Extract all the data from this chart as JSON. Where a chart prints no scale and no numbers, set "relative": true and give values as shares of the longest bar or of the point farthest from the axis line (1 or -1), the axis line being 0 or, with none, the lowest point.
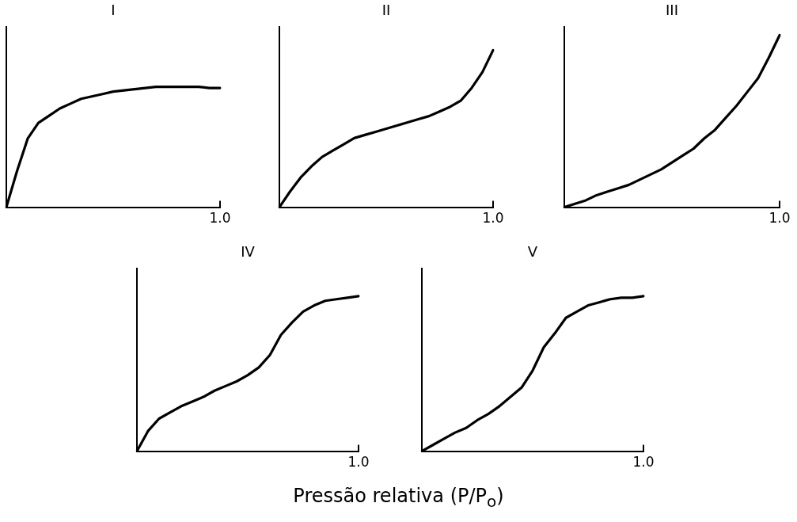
{
  "chart_data": [
    {
      "type": "line",
      "title": "I",
      "relative": true,
      "annotations": [
        "1.0"
      ],
      "grid": false,
      "legend": false,
      "marker": "none",
      "line_style": "solid",
      "categories": [
        null,
        null,
        null,
        null,
        null,
        null,
        null,
        null,
        null,
        null,
        null,
        null,
        null,
        null,
        null,
        null,
        null,
        null,
        null,
        null,
        null
      ],
      "series": [
        {
          "color": "#000000",
          "values": [
            0,
            0.3,
            0.57,
            0.7,
            0.76,
            0.82,
            0.86,
            0.9,
            0.92,
            0.94,
            0.96,
            0.97,
            0.98,
            0.99,
            1.0,
            1.0,
            1.0,
            1.0,
            1.0,
            0.99,
            0.99
          ]
        }
      ]
    },
    {
      "type": "line",
      "title": "II",
      "relative": true,
      "annotations": [
        "1.0"
      ],
      "grid": false,
      "legend": false,
      "marker": "none",
      "line_style": "solid",
      "categories": [
        null,
        null,
        null,
        null,
        null,
        null,
        null,
        null,
        null,
        null,
        null,
        null,
        null,
        null,
        null,
        null,
        null,
        null,
        null,
        null,
        null
      ],
      "series": [
        {
          "color": "#000000",
          "values": [
            0,
            0.1,
            0.19,
            0.26,
            0.32,
            0.36,
            0.4,
            0.44,
            0.46,
            0.48,
            0.5,
            0.52,
            0.54,
            0.56,
            0.58,
            0.61,
            0.64,
            0.68,
            0.76,
            0.86,
            1.0
          ]
        }
      ]
    },
    {
      "type": "line",
      "title": "III",
      "relative": true,
      "annotations": [
        "1.0"
      ],
      "grid": false,
      "legend": false,
      "marker": "none",
      "line_style": "solid",
      "categories": [
        null,
        null,
        null,
        null,
        null,
        null,
        null,
        null,
        null,
        null,
        null,
        null,
        null,
        null,
        null,
        null,
        null,
        null,
        null,
        null,
        null
      ],
      "series": [
        {
          "color": "#000000",
          "values": [
            0,
            0.02,
            0.04,
            0.07,
            0.09,
            0.11,
            0.13,
            0.16,
            0.19,
            0.22,
            0.26,
            0.3,
            0.34,
            0.4,
            0.45,
            0.52,
            0.59,
            0.67,
            0.75,
            0.87,
            1.0
          ]
        }
      ]
    },
    {
      "type": "line",
      "title": "IV",
      "relative": true,
      "annotations": [
        "1.0"
      ],
      "grid": false,
      "legend": false,
      "marker": "none",
      "line_style": "solid",
      "categories": [
        null,
        null,
        null,
        null,
        null,
        null,
        null,
        null,
        null,
        null,
        null,
        null,
        null,
        null,
        null,
        null,
        null,
        null,
        null,
        null,
        null
      ],
      "series": [
        {
          "color": "#000000",
          "values": [
            0,
            0.13,
            0.21,
            0.25,
            0.29,
            0.32,
            0.35,
            0.39,
            0.42,
            0.45,
            0.49,
            0.54,
            0.62,
            0.75,
            0.83,
            0.9,
            0.94,
            0.97,
            0.98,
            0.99,
            1.0
          ]
        }
      ]
    },
    {
      "type": "line",
      "title": "V",
      "xlabel": "Pressão relativa (P/P$_{o}$)",
      "relative": true,
      "annotations": [
        "1.0"
      ],
      "grid": false,
      "legend": false,
      "marker": "none",
      "line_style": "solid",
      "categories": [
        null,
        null,
        null,
        null,
        null,
        null,
        null,
        null,
        null,
        null,
        null,
        null,
        null,
        null,
        null,
        null,
        null,
        null,
        null,
        null,
        null
      ],
      "series": [
        {
          "color": "#000000",
          "values": [
            0,
            0.04,
            0.08,
            0.12,
            0.15,
            0.2,
            0.24,
            0.29,
            0.35,
            0.41,
            0.52,
            0.67,
            0.76,
            0.86,
            0.9,
            0.94,
            0.96,
            0.98,
            0.99,
            0.99,
            1.0
          ]
        }
      ]
    }
  ]
}
